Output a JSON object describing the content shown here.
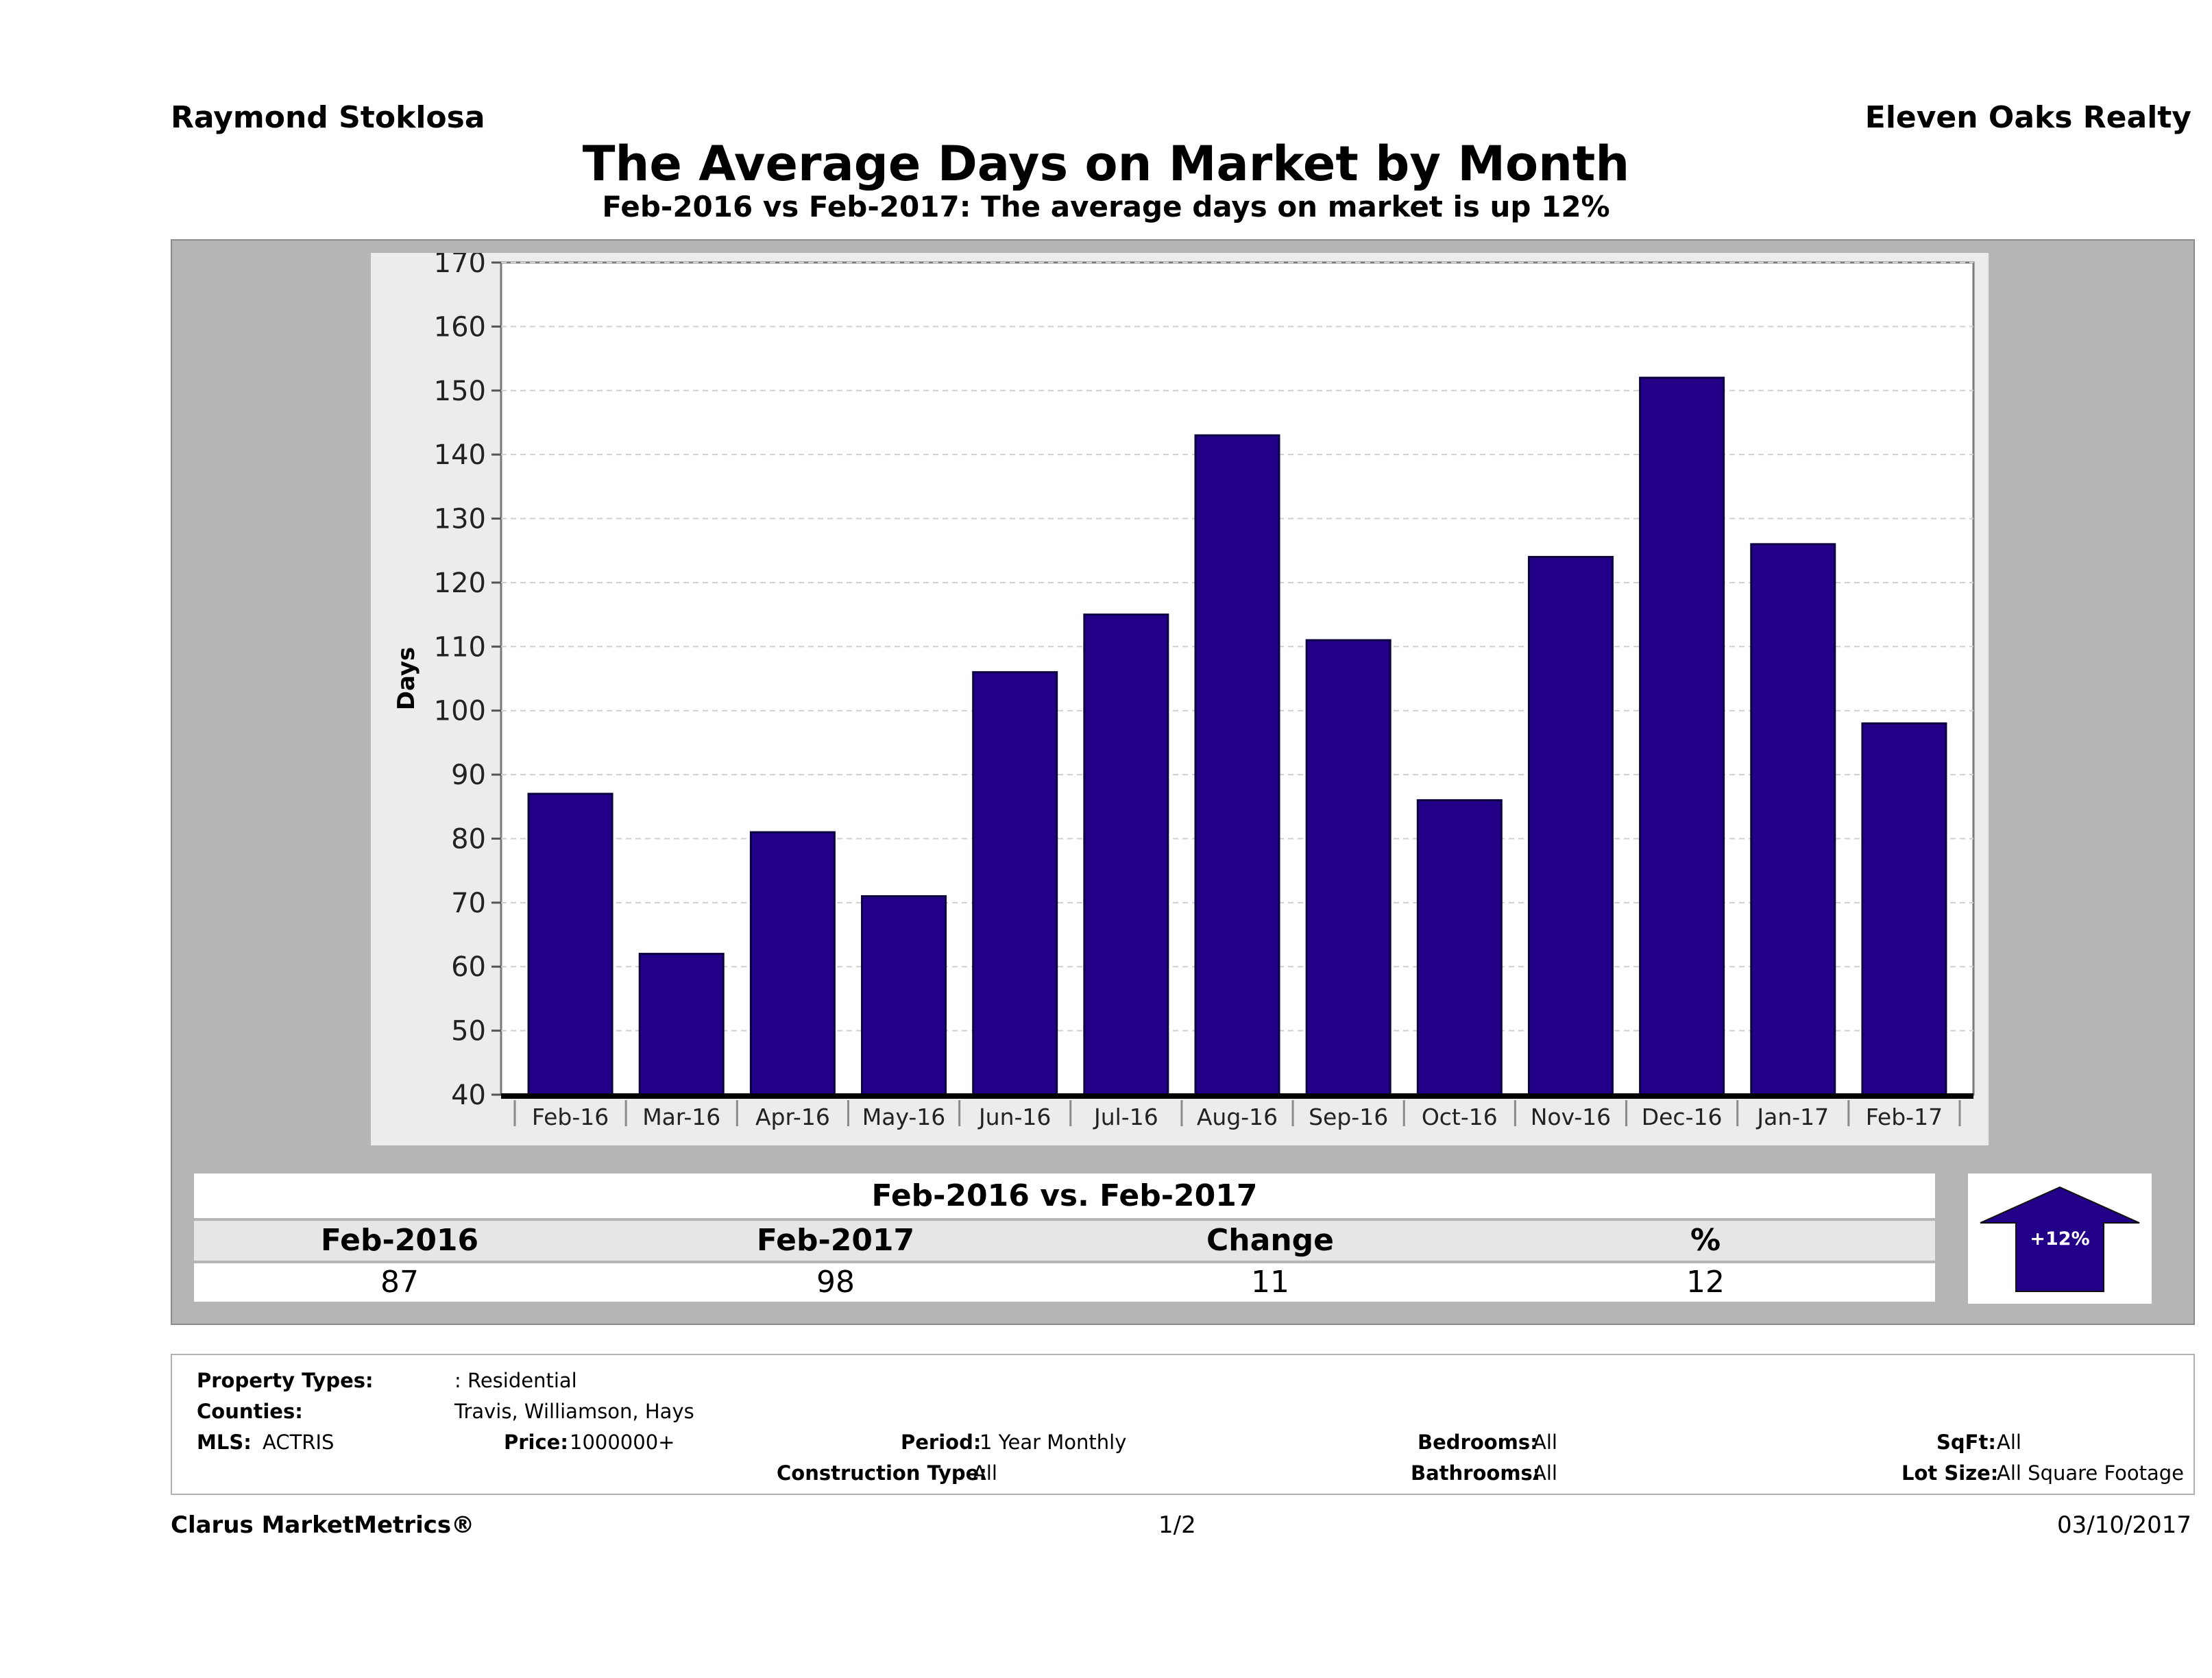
{
  "header": {
    "agent": "Raymond Stoklosa",
    "company": "Eleven Oaks Realty",
    "title": "The Average Days on Market by Month",
    "subtitle": "Feb-2016 vs Feb-2017: The average days on market is up 12%"
  },
  "colors": {
    "bar": "#220088",
    "panel": "#ececec",
    "outer": "#b5b5b5"
  },
  "chart_data": {
    "type": "bar",
    "categories": [
      "Feb-16",
      "Mar-16",
      "Apr-16",
      "May-16",
      "Jun-16",
      "Jul-16",
      "Aug-16",
      "Sep-16",
      "Oct-16",
      "Nov-16",
      "Dec-16",
      "Jan-17",
      "Feb-17"
    ],
    "values": [
      87,
      62,
      81,
      71,
      106,
      115,
      143,
      111,
      86,
      124,
      152,
      126,
      98
    ],
    "ylabel": "Days",
    "ylim": [
      40,
      170
    ],
    "yticks": [
      "40",
      "50",
      "60",
      "70",
      "80",
      "90",
      "100",
      "110",
      "120",
      "130",
      "140",
      "150",
      "160",
      "170"
    ],
    "grid": true
  },
  "summary": {
    "title": "Feb-2016 vs. Feb-2017",
    "headers": [
      "Feb-2016",
      "Feb-2017",
      "Change",
      "%"
    ],
    "values": [
      "87",
      "98",
      "11",
      "12"
    ],
    "badge": "+12%"
  },
  "info": {
    "property_types_label": "Property Types:",
    "property_types_value": ": Residential",
    "counties_label": "Counties:",
    "counties_value": "Travis, Williamson, Hays",
    "mls_label": "MLS:",
    "mls_value": "ACTRIS",
    "price_label": "Price:",
    "price_value": "1000000+",
    "period_label": "Period:",
    "period_value": "1 Year Monthly",
    "construction_label": "Construction Type:",
    "construction_value": "All",
    "bedrooms_label": "Bedrooms:",
    "bedrooms_value": "All",
    "bathrooms_label": "Bathrooms:",
    "bathrooms_value": "All",
    "sqft_label": "SqFt:",
    "sqft_value": "All",
    "lotsize_label": "Lot Size:",
    "lotsize_value": "All Square Footage"
  },
  "footer": {
    "brand": "Clarus MarketMetrics®",
    "page": "1/2",
    "date": "03/10/2017"
  }
}
